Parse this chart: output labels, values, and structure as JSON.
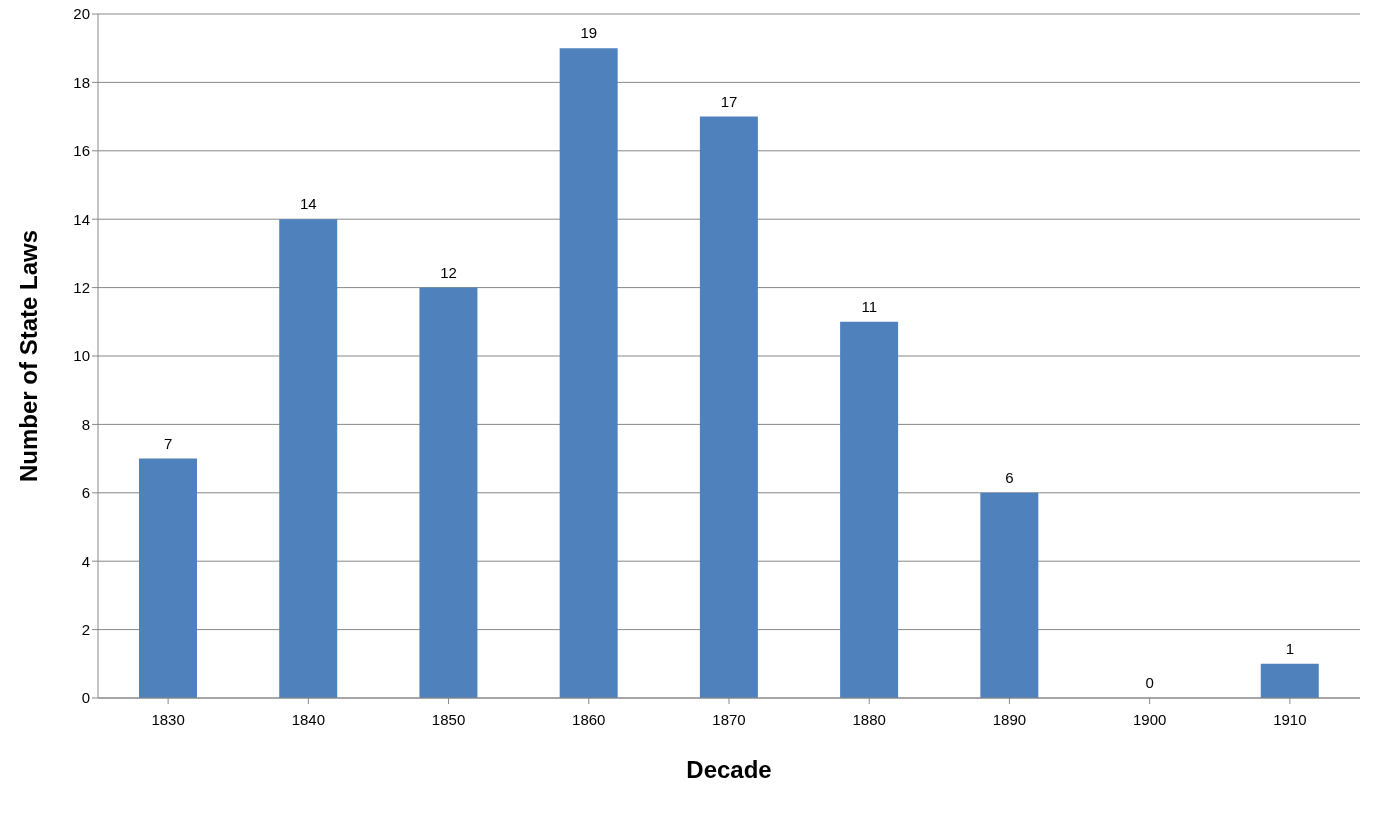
{
  "chart_data": {
    "type": "bar",
    "xlabel": "Decade",
    "ylabel": "Number of State Laws",
    "categories": [
      "1830",
      "1840",
      "1850",
      "1860",
      "1870",
      "1880",
      "1890",
      "1900",
      "1910"
    ],
    "values": [
      7,
      14,
      12,
      19,
      17,
      11,
      6,
      0,
      1
    ],
    "color": "#4f81bd",
    "ylim": [
      0,
      20
    ],
    "yticks": [
      0,
      2,
      4,
      6,
      8,
      10,
      12,
      14,
      16,
      18,
      20
    ],
    "grid": "y",
    "data_labels": true,
    "legend": false
  }
}
